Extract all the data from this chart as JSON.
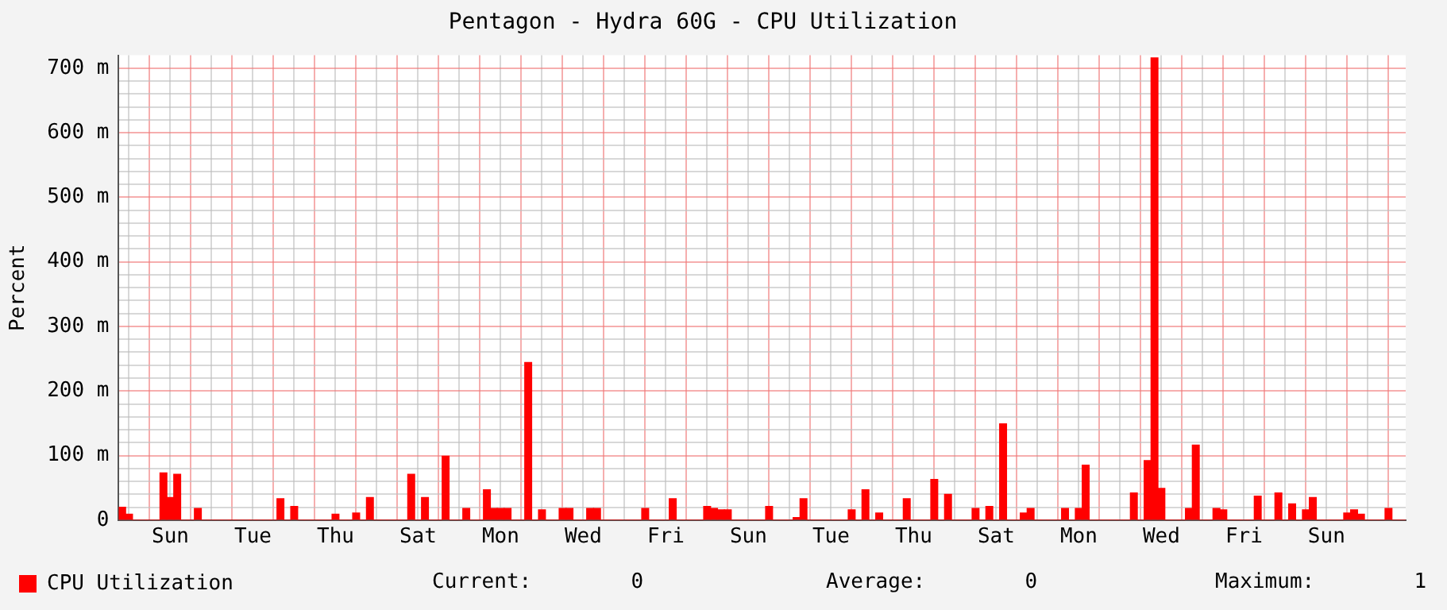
{
  "chart_data": {
    "type": "bar",
    "title": "Pentagon - Hydra 60G - CPU Utilization",
    "ylabel": "Percent",
    "categories": [
      null,
      null,
      null,
      null,
      null,
      null,
      null,
      "Sun",
      null,
      null,
      null,
      null,
      null,
      null,
      null,
      null,
      null,
      null,
      null,
      "Tue",
      null,
      null,
      null,
      null,
      null,
      null,
      null,
      null,
      null,
      null,
      null,
      "Thu",
      null,
      null,
      null,
      null,
      null,
      null,
      null,
      null,
      null,
      null,
      null,
      "Sat",
      null,
      null,
      null,
      null,
      null,
      null,
      null,
      null,
      null,
      null,
      null,
      "Mon",
      null,
      null,
      null,
      null,
      null,
      null,
      null,
      null,
      null,
      null,
      null,
      "Wed",
      null,
      null,
      null,
      null,
      null,
      null,
      null,
      null,
      null,
      null,
      null,
      "Fri",
      null,
      null,
      null,
      null,
      null,
      null,
      null,
      null,
      null,
      null,
      null,
      "Sun",
      null,
      null,
      null,
      null,
      null,
      null,
      null,
      null,
      null,
      null,
      null,
      "Tue",
      null,
      null,
      null,
      null,
      null,
      null,
      null,
      null,
      null,
      null,
      null,
      "Thu",
      null,
      null,
      null,
      null,
      null,
      null,
      null,
      null,
      null,
      null,
      null,
      "Sat",
      null,
      null,
      null,
      null,
      null,
      null,
      null,
      null,
      null,
      null,
      null,
      "Mon",
      null,
      null,
      null,
      null,
      null,
      null,
      null,
      null,
      null,
      null,
      null,
      "Wed",
      null,
      null,
      null,
      null,
      null,
      null,
      null,
      null,
      null,
      null,
      null,
      "Fri",
      null,
      null,
      null,
      null,
      null,
      null,
      null,
      null,
      null,
      null,
      null,
      "Sun",
      null,
      null,
      null,
      null,
      null,
      null,
      null,
      null,
      null,
      null,
      null
    ],
    "series": [
      {
        "name": "CPU Utilization",
        "color": "#ff0000",
        "values": [
          20,
          9,
          0,
          0,
          0,
          0,
          73,
          35,
          71,
          0,
          0,
          18,
          0,
          0,
          0,
          0,
          0,
          0,
          0,
          0,
          0,
          0,
          0,
          33,
          0,
          21,
          0,
          0,
          0,
          0,
          0,
          9,
          0,
          0,
          11,
          0,
          35,
          0,
          0,
          0,
          0,
          0,
          71,
          0,
          35,
          0,
          0,
          99,
          0,
          0,
          18,
          0,
          0,
          47,
          18,
          18,
          18,
          0,
          0,
          244,
          0,
          16,
          0,
          0,
          18,
          18,
          0,
          0,
          18,
          18,
          0,
          0,
          0,
          0,
          0,
          0,
          18,
          0,
          0,
          0,
          33,
          0,
          0,
          0,
          0,
          21,
          18,
          16,
          16,
          0,
          0,
          0,
          0,
          0,
          21,
          0,
          0,
          0,
          4,
          33,
          0,
          0,
          0,
          0,
          0,
          0,
          16,
          0,
          47,
          0,
          11,
          0,
          0,
          0,
          33,
          0,
          0,
          0,
          63,
          0,
          40,
          0,
          0,
          0,
          18,
          0,
          21,
          0,
          149,
          0,
          0,
          11,
          18,
          0,
          0,
          0,
          0,
          18,
          0,
          18,
          85,
          0,
          0,
          0,
          0,
          0,
          0,
          42,
          0,
          92,
          716,
          49,
          0,
          0,
          0,
          18,
          116,
          0,
          0,
          18,
          16,
          0,
          0,
          0,
          0,
          37,
          0,
          0,
          42,
          0,
          25,
          0,
          16,
          35,
          0,
          0,
          0,
          0,
          11,
          16,
          9,
          0,
          0,
          0,
          18,
          0,
          0
        ]
      }
    ],
    "ylim": [
      0,
      720
    ],
    "yticks": [
      {
        "value": 0,
        "label": "0"
      },
      {
        "value": 20,
        "label": null
      },
      {
        "value": 40,
        "label": null
      },
      {
        "value": 60,
        "label": null
      },
      {
        "value": 80,
        "label": null
      },
      {
        "value": 100,
        "label": "100 m"
      },
      {
        "value": 120,
        "label": null
      },
      {
        "value": 140,
        "label": null
      },
      {
        "value": 160,
        "label": null
      },
      {
        "value": 180,
        "label": null
      },
      {
        "value": 200,
        "label": "200 m"
      },
      {
        "value": 220,
        "label": null
      },
      {
        "value": 240,
        "label": null
      },
      {
        "value": 260,
        "label": null
      },
      {
        "value": 280,
        "label": null
      },
      {
        "value": 300,
        "label": "300 m"
      },
      {
        "value": 320,
        "label": null
      },
      {
        "value": 340,
        "label": null
      },
      {
        "value": 360,
        "label": null
      },
      {
        "value": 380,
        "label": null
      },
      {
        "value": 400,
        "label": "400 m"
      },
      {
        "value": 420,
        "label": null
      },
      {
        "value": 440,
        "label": null
      },
      {
        "value": 460,
        "label": null
      },
      {
        "value": 480,
        "label": null
      },
      {
        "value": 500,
        "label": "500 m"
      },
      {
        "value": 520,
        "label": null
      },
      {
        "value": 540,
        "label": null
      },
      {
        "value": 560,
        "label": null
      },
      {
        "value": 580,
        "label": null
      },
      {
        "value": 600,
        "label": "600 m"
      },
      {
        "value": 620,
        "label": null
      },
      {
        "value": 640,
        "label": null
      },
      {
        "value": 660,
        "label": null
      },
      {
        "value": 680,
        "label": null
      },
      {
        "value": 700,
        "label": "700 m"
      }
    ],
    "grid": true,
    "legend": "bottom left",
    "annotations": [
      "Current:        0",
      "Average:        0",
      "Maximum:        1"
    ]
  }
}
